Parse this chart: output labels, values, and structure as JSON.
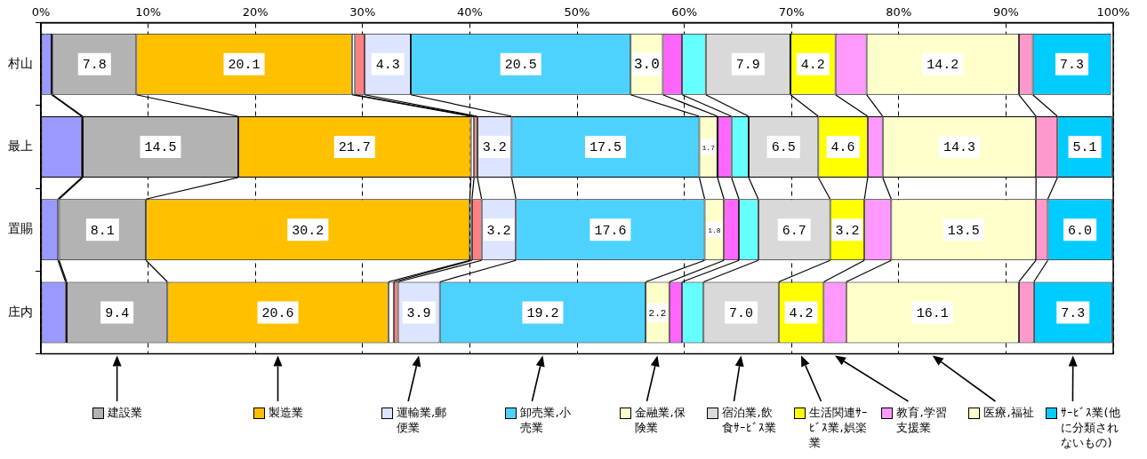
{
  "chart_data": {
    "type": "bar",
    "orientation": "horizontal",
    "stacked": true,
    "categories": [
      "村山",
      "最上",
      "置賜",
      "庄内"
    ],
    "xlim": [
      0,
      100
    ],
    "xticks": [
      {
        "value": 0,
        "label": "0%"
      },
      {
        "value": 10,
        "label": "10%"
      },
      {
        "value": 20,
        "label": "20%"
      },
      {
        "value": 30,
        "label": "30%"
      },
      {
        "value": 40,
        "label": "40%"
      },
      {
        "value": 50,
        "label": "50%"
      },
      {
        "value": 60,
        "label": "60%"
      },
      {
        "value": 70,
        "label": "70%"
      },
      {
        "value": 80,
        "label": "80%"
      },
      {
        "value": 90,
        "label": "90%"
      },
      {
        "value": 100,
        "label": "100%"
      }
    ],
    "grid": "x",
    "legend": "bottom",
    "series": [
      {
        "color": "#9999ff",
        "values": [
          1.0,
          3.8,
          1.6,
          2.3
        ]
      },
      {
        "color": "#000000",
        "values": [
          0.1,
          0.1,
          0.1,
          0.1
        ]
      },
      {
        "name": "建設業",
        "color": "#b3b3b3",
        "values": [
          7.8,
          14.5,
          8.1,
          9.4
        ],
        "value_labels": [
          "7.8",
          "14.5",
          "8.1",
          "9.4"
        ]
      },
      {
        "name": "製造業",
        "color": "#ffc000",
        "values": [
          20.1,
          21.7,
          30.2,
          20.6
        ],
        "value_labels": [
          "20.1",
          "21.7",
          "30.2",
          "20.6"
        ]
      },
      {
        "color": "#ffffff",
        "values": [
          0.3,
          0.3,
          0.2,
          0.5
        ]
      },
      {
        "color": "#ff8080",
        "values": [
          0.9,
          0.3,
          0.9,
          0.4
        ]
      },
      {
        "name": "運輸業,郵便業",
        "color": "#dde4ff",
        "values": [
          4.3,
          3.2,
          3.2,
          3.9
        ],
        "value_labels": [
          "4.3",
          "3.2",
          "3.2",
          "3.9"
        ]
      },
      {
        "name": "卸売業,小売業",
        "color": "#4dd2ff",
        "values": [
          20.5,
          17.5,
          17.6,
          19.2
        ],
        "value_labels": [
          "20.5",
          "17.5",
          "17.6",
          "19.2"
        ]
      },
      {
        "name": "金融業,保険業",
        "color": "#ffffcc",
        "values": [
          3.0,
          1.7,
          1.8,
          2.2
        ],
        "value_labels": [
          "3.0",
          "1.7",
          "1.8",
          "2.2"
        ]
      },
      {
        "color": "#ff66ff",
        "values": [
          1.8,
          1.3,
          1.4,
          1.2
        ]
      },
      {
        "color": "#66ffff",
        "values": [
          2.2,
          1.6,
          1.8,
          2.0
        ]
      },
      {
        "name": "宿泊業,飲食ｻｰﾋﾞｽ業",
        "color": "#d9d9d9",
        "values": [
          7.9,
          6.5,
          6.7,
          7.0
        ],
        "value_labels": [
          "7.9",
          "6.5",
          "6.7",
          "7.0"
        ]
      },
      {
        "name": "生活関連ｻｰﾋﾞｽ業,娯楽業",
        "color": "#ffff00",
        "values": [
          4.2,
          4.6,
          3.2,
          4.2
        ],
        "value_labels": [
          "4.2",
          "4.6",
          "3.2",
          "4.2"
        ]
      },
      {
        "name": "教育,学習支援業",
        "color": "#ff99ff",
        "values": [
          2.9,
          1.4,
          2.5,
          2.1
        ]
      },
      {
        "name": "医療,福祉",
        "color": "#ffffcc",
        "values": [
          14.2,
          14.3,
          13.5,
          16.1
        ],
        "value_labels": [
          "14.2",
          "14.3",
          "13.5",
          "16.1"
        ]
      },
      {
        "color": "#ff99cc",
        "values": [
          1.3,
          2.0,
          1.1,
          1.4
        ]
      },
      {
        "name": "ｻｰﾋﾞｽ業(他に分類されないもの)",
        "color": "#00ccff",
        "values": [
          7.3,
          5.1,
          6.0,
          7.3
        ],
        "value_labels": [
          "7.3",
          "5.1",
          "6.0",
          "7.3"
        ]
      }
    ]
  }
}
